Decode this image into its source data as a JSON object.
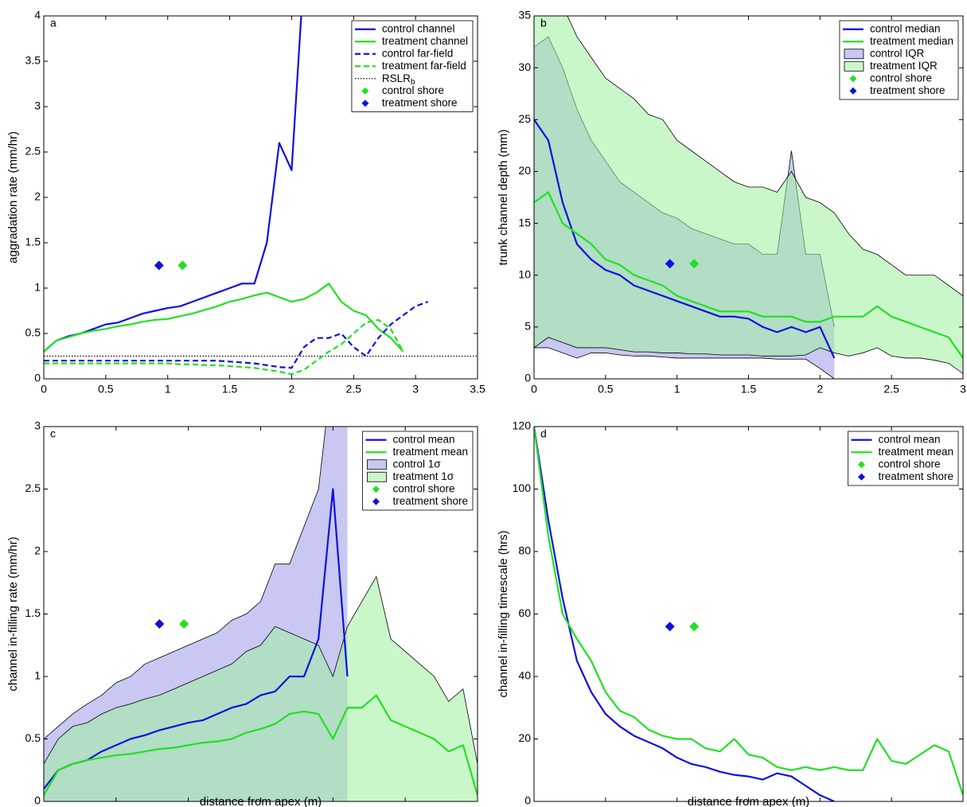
{
  "chart_data": [
    {
      "type": "line",
      "panel_label": "a",
      "y_label": "aggradation rate (mm/hr)",
      "x": [
        0,
        0.1,
        0.2,
        0.3,
        0.4,
        0.5,
        0.6,
        0.7,
        0.8,
        0.9,
        1,
        1.1,
        1.2,
        1.3,
        1.4,
        1.5,
        1.6,
        1.7,
        1.8,
        1.9,
        2,
        2.1,
        2.2,
        2.3,
        2.4,
        2.5,
        2.6,
        2.7,
        2.8,
        2.9,
        3,
        3.1
      ],
      "xlim": [
        0,
        3.5
      ],
      "xticks": [
        0,
        0.5,
        1,
        1.5,
        2,
        2.5,
        3,
        3.5
      ],
      "ylim": [
        0,
        4
      ],
      "yticks": [
        0,
        0.5,
        1,
        1.5,
        2,
        2.5,
        3,
        3.5,
        4
      ],
      "legend": "upper right",
      "series": [
        {
          "name": "control channel",
          "color": "#1010e0",
          "kind": "line",
          "style": "solid",
          "values": [
            0.3,
            0.42,
            0.47,
            0.5,
            0.55,
            0.6,
            0.62,
            0.67,
            0.72,
            0.75,
            0.78,
            0.8,
            0.85,
            0.9,
            0.95,
            1.0,
            1.05,
            1.05,
            1.5,
            2.6,
            2.3,
            4.5,
            null,
            null,
            null,
            null,
            null,
            null,
            null,
            null,
            null,
            null
          ]
        },
        {
          "name": "treatment channel",
          "color": "#22e022",
          "kind": "line",
          "style": "solid",
          "values": [
            0.3,
            0.42,
            0.46,
            0.5,
            0.53,
            0.55,
            0.58,
            0.6,
            0.63,
            0.65,
            0.66,
            0.69,
            0.72,
            0.76,
            0.8,
            0.85,
            0.88,
            0.92,
            0.95,
            0.9,
            0.85,
            0.88,
            0.95,
            1.05,
            0.85,
            0.75,
            0.7,
            0.55,
            0.45,
            0.3,
            null,
            null
          ]
        },
        {
          "name": "control far-field",
          "color": "#1010e0",
          "kind": "line",
          "style": "dashed",
          "values": [
            0.2,
            0.2,
            0.2,
            0.2,
            0.2,
            0.2,
            0.2,
            0.2,
            0.2,
            0.2,
            0.2,
            0.2,
            0.2,
            0.2,
            0.2,
            0.19,
            0.18,
            0.17,
            0.15,
            0.13,
            0.12,
            0.35,
            0.45,
            0.45,
            0.5,
            0.35,
            0.25,
            0.45,
            0.6,
            0.7,
            0.8,
            0.85
          ]
        },
        {
          "name": "treatment far-field",
          "color": "#22e022",
          "kind": "line",
          "style": "dashed",
          "values": [
            0.17,
            0.17,
            0.17,
            0.17,
            0.17,
            0.17,
            0.17,
            0.17,
            0.17,
            0.17,
            0.17,
            0.16,
            0.16,
            0.15,
            0.15,
            0.14,
            0.13,
            0.12,
            0.1,
            0.08,
            0.05,
            0.1,
            0.2,
            0.3,
            0.38,
            0.5,
            0.62,
            0.65,
            0.55,
            0.3,
            null,
            null
          ]
        }
      ],
      "reference_lines": [
        {
          "name": "RSLR",
          "subscript": "b",
          "value": 0.25,
          "color": "#000000",
          "style": "dotted"
        }
      ],
      "markers": [
        {
          "name": "control shore",
          "color": "#22e022",
          "x": 1.12,
          "y": 1.25
        },
        {
          "name": "treatment shore",
          "color": "#1010e0",
          "x": 0.93,
          "y": 1.25
        }
      ]
    },
    {
      "type": "line",
      "panel_label": "b",
      "y_label": "trunk channel depth (mm)",
      "x": [
        0,
        0.1,
        0.2,
        0.3,
        0.4,
        0.5,
        0.6,
        0.7,
        0.8,
        0.9,
        1,
        1.1,
        1.2,
        1.3,
        1.4,
        1.5,
        1.6,
        1.7,
        1.8,
        1.9,
        2,
        2.1,
        2.2,
        2.3,
        2.4,
        2.5,
        2.6,
        2.7,
        2.8,
        2.9,
        3
      ],
      "xlim": [
        0,
        3
      ],
      "xticks": [
        0,
        0.5,
        1,
        1.5,
        2,
        2.5,
        3
      ],
      "ylim": [
        0,
        35
      ],
      "yticks": [
        0,
        5,
        10,
        15,
        20,
        25,
        30,
        35
      ],
      "legend": "upper right",
      "series": [
        {
          "name": "control median",
          "color": "#1010e0",
          "kind": "line",
          "style": "solid",
          "values": [
            25,
            23,
            17,
            13,
            11.5,
            10.5,
            10,
            9,
            8.5,
            8,
            7.5,
            7,
            6.5,
            6,
            6,
            5.8,
            5,
            4.5,
            5,
            4.5,
            5,
            2,
            null,
            null,
            null,
            null,
            null,
            null,
            null,
            null,
            null
          ]
        },
        {
          "name": "treatment median",
          "color": "#22e022",
          "kind": "line",
          "style": "solid",
          "values": [
            17,
            18,
            15,
            14,
            13,
            11.5,
            11,
            10,
            9.5,
            9,
            8,
            7.5,
            7,
            6.5,
            6.5,
            6.5,
            6,
            6,
            6,
            5.5,
            5.5,
            6,
            6,
            6,
            7,
            6,
            5.5,
            5,
            4.5,
            4,
            2
          ]
        },
        {
          "name": "control IQR",
          "color": "#9a9ae8",
          "kind": "band",
          "lower": [
            3,
            3,
            2.5,
            2,
            2.5,
            2.5,
            2.3,
            2.2,
            2.2,
            2.1,
            2,
            2,
            2,
            2,
            2,
            2,
            2,
            1.9,
            1.9,
            1.9,
            1,
            0,
            null,
            null,
            null,
            null,
            null,
            null,
            null,
            null,
            null
          ],
          "upper": [
            32,
            33,
            30,
            26,
            23,
            21,
            19,
            18,
            17,
            16,
            15.5,
            14.5,
            14,
            13.5,
            13,
            13,
            12,
            12,
            22,
            12,
            12,
            5,
            null,
            null,
            null,
            null,
            null,
            null,
            null,
            null,
            null
          ]
        },
        {
          "name": "treatment IQR",
          "color": "#9ef09e",
          "kind": "band",
          "lower": [
            3,
            4,
            3.5,
            3,
            3,
            3,
            2.8,
            2.6,
            2.6,
            2.5,
            2.5,
            2.4,
            2.4,
            2.3,
            2.3,
            2.3,
            2.2,
            2.2,
            2.2,
            2.3,
            3,
            2.5,
            2.2,
            2.5,
            3,
            2.2,
            2,
            2,
            1.8,
            1.5,
            0.5
          ],
          "upper": [
            35,
            38,
            36,
            33,
            31,
            29,
            28,
            27,
            25.5,
            25,
            23,
            22,
            21,
            20,
            19,
            18.5,
            18.5,
            18,
            20,
            17.5,
            17,
            16,
            14,
            12.5,
            12,
            11,
            10,
            10,
            10,
            9,
            8
          ]
        }
      ],
      "markers": [
        {
          "name": "control shore",
          "color": "#22e022",
          "x": 1.12,
          "y": 11.1
        },
        {
          "name": "treatment shore",
          "color": "#1010e0",
          "x": 0.95,
          "y": 11.1
        }
      ]
    },
    {
      "type": "line",
      "panel_label": "c",
      "y_label": "channel in-filling rate (mm/hr)",
      "x_label": "distance from apex (m)",
      "x": [
        0,
        0.1,
        0.2,
        0.3,
        0.4,
        0.5,
        0.6,
        0.7,
        0.8,
        0.9,
        1,
        1.1,
        1.2,
        1.3,
        1.4,
        1.5,
        1.6,
        1.7,
        1.8,
        1.9,
        2,
        2.1,
        2.2,
        2.3,
        2.4,
        2.5,
        2.6,
        2.7,
        2.8,
        2.9,
        3
      ],
      "xlim": [
        0,
        3
      ],
      "xticks": [
        0,
        0.5,
        1,
        1.5,
        2,
        2.5,
        3
      ],
      "ylim": [
        0,
        3
      ],
      "yticks": [
        0,
        0.5,
        1,
        1.5,
        2,
        2.5,
        3
      ],
      "legend": "upper right",
      "series": [
        {
          "name": "control mean",
          "color": "#1010e0",
          "kind": "line",
          "style": "solid",
          "values": [
            0.1,
            0.25,
            0.3,
            0.33,
            0.4,
            0.45,
            0.5,
            0.53,
            0.57,
            0.6,
            0.63,
            0.65,
            0.7,
            0.75,
            0.78,
            0.85,
            0.88,
            1.0,
            1.0,
            1.3,
            2.5,
            1.0,
            null,
            null,
            null,
            null,
            null,
            null,
            null,
            null,
            null
          ]
        },
        {
          "name": "treatment mean",
          "color": "#22e022",
          "kind": "line",
          "style": "solid",
          "values": [
            0.05,
            0.25,
            0.3,
            0.33,
            0.35,
            0.37,
            0.38,
            0.4,
            0.42,
            0.43,
            0.45,
            0.47,
            0.48,
            0.5,
            0.55,
            0.58,
            0.62,
            0.7,
            0.72,
            0.7,
            0.5,
            0.75,
            0.75,
            0.85,
            0.65,
            0.6,
            0.55,
            0.5,
            0.4,
            0.45,
            0.05
          ]
        },
        {
          "name": "control 1σ",
          "color": "#9a9ae8",
          "kind": "band",
          "lower": [
            0,
            0,
            0,
            0,
            0,
            0,
            0,
            0,
            0,
            0,
            0,
            0,
            0,
            0,
            0,
            0,
            0,
            0,
            0,
            0,
            0,
            0,
            null,
            null,
            null,
            null,
            null,
            null,
            null,
            null,
            null
          ],
          "upper": [
            0.5,
            0.6,
            0.7,
            0.78,
            0.85,
            0.95,
            1.0,
            1.1,
            1.15,
            1.2,
            1.25,
            1.3,
            1.35,
            1.45,
            1.5,
            1.6,
            1.9,
            1.9,
            2.2,
            2.5,
            3.5,
            3.5,
            null,
            null,
            null,
            null,
            null,
            null,
            null,
            null,
            null
          ]
        },
        {
          "name": "treatment 1σ",
          "color": "#9ef09e",
          "kind": "band",
          "lower": [
            0,
            0,
            0,
            0,
            0,
            0,
            0,
            0,
            0,
            0,
            0,
            0,
            0,
            0,
            0,
            0,
            0,
            0,
            0,
            0,
            0,
            0,
            0,
            0,
            0,
            0,
            0,
            0,
            0,
            0,
            0
          ],
          "upper": [
            0.3,
            0.5,
            0.6,
            0.63,
            0.7,
            0.75,
            0.78,
            0.82,
            0.85,
            0.9,
            0.95,
            1.0,
            1.05,
            1.1,
            1.2,
            1.25,
            1.4,
            1.35,
            1.3,
            1.25,
            1.0,
            1.4,
            1.6,
            1.8,
            1.3,
            1.2,
            1.1,
            1.0,
            0.8,
            0.9,
            0.3
          ]
        }
      ],
      "markers": [
        {
          "name": "control shore",
          "color": "#22e022",
          "x": 0.97,
          "y": 1.42
        },
        {
          "name": "treatment shore",
          "color": "#1010e0",
          "x": 0.8,
          "y": 1.42
        }
      ]
    },
    {
      "type": "line",
      "panel_label": "d",
      "y_label": "channel in-filling timescale (hrs)",
      "x_label": "distance from apex (m)",
      "x": [
        0,
        0.1,
        0.2,
        0.3,
        0.4,
        0.5,
        0.6,
        0.7,
        0.8,
        0.9,
        1,
        1.1,
        1.2,
        1.3,
        1.4,
        1.5,
        1.6,
        1.7,
        1.8,
        1.9,
        2,
        2.1,
        2.2,
        2.3,
        2.4,
        2.5,
        2.6,
        2.7,
        2.8,
        2.9,
        3
      ],
      "xlim": [
        0,
        3
      ],
      "xticks": [
        0,
        0.5,
        1,
        1.5,
        2,
        2.5,
        3
      ],
      "ylim": [
        0,
        120
      ],
      "yticks": [
        0,
        20,
        40,
        60,
        80,
        100,
        120
      ],
      "legend": "upper right",
      "series": [
        {
          "name": "control mean",
          "color": "#1010e0",
          "kind": "line",
          "style": "solid",
          "values": [
            120,
            90,
            65,
            45,
            35,
            28,
            24,
            21,
            19,
            17,
            14,
            12,
            11,
            9.5,
            8.5,
            8,
            7,
            9,
            8,
            5,
            2,
            0,
            null,
            null,
            null,
            null,
            null,
            null,
            null,
            null,
            null
          ]
        },
        {
          "name": "treatment mean",
          "color": "#22e022",
          "kind": "line",
          "style": "solid",
          "values": [
            120,
            85,
            60,
            52,
            45,
            35,
            29,
            27,
            23,
            21,
            20,
            20,
            17,
            16,
            20,
            15,
            14,
            11,
            10,
            11,
            10,
            11,
            10,
            10,
            20,
            13,
            12,
            15,
            18,
            16,
            2
          ]
        }
      ],
      "markers": [
        {
          "name": "control shore",
          "color": "#22e022",
          "x": 1.12,
          "y": 56
        },
        {
          "name": "treatment shore",
          "color": "#1010e0",
          "x": 0.95,
          "y": 56
        }
      ]
    }
  ]
}
